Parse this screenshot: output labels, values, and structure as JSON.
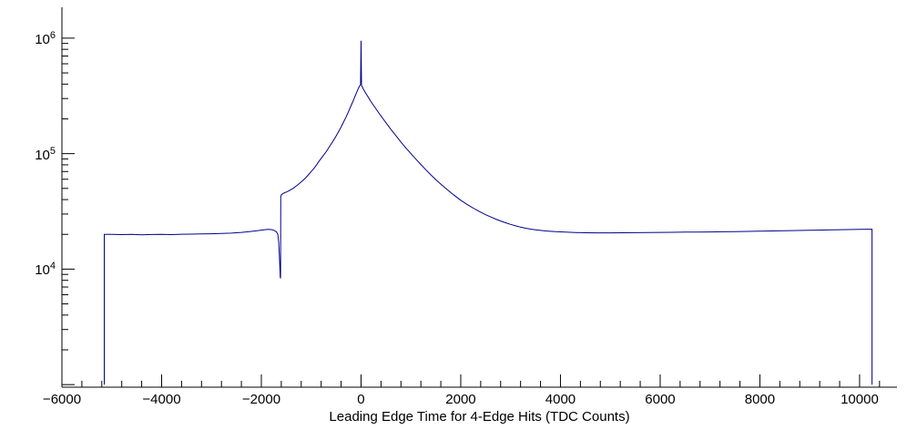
{
  "chart_data": {
    "type": "line",
    "title": "",
    "xlabel": "Leading Edge Time for 4-Edge Hits (TDC Counts)",
    "ylabel": "",
    "y_scale": "log",
    "grid": false,
    "legend": "none",
    "line_color": "#00008b",
    "axis_color": "#000000",
    "xlim": [
      -6000,
      10750
    ],
    "ylim": [
      950,
      1850000
    ],
    "x_ticks": [
      {
        "value": -6000,
        "label": "−6000"
      },
      {
        "value": -4000,
        "label": "−4000"
      },
      {
        "value": -2000,
        "label": "−2000"
      },
      {
        "value": 0,
        "label": "0"
      },
      {
        "value": 2000,
        "label": "2000"
      },
      {
        "value": 4000,
        "label": "4000"
      },
      {
        "value": 6000,
        "label": "6000"
      },
      {
        "value": 8000,
        "label": "8000"
      },
      {
        "value": 10000,
        "label": "10000"
      }
    ],
    "x_minor_step": 400,
    "y_ticks": [
      {
        "value": 1000,
        "base": "",
        "exp": ""
      },
      {
        "value": 10000,
        "base": "10",
        "exp": "4"
      },
      {
        "value": 100000,
        "base": "10",
        "exp": "5"
      },
      {
        "value": 1000000,
        "base": "10",
        "exp": "6"
      }
    ],
    "points": [
      [
        -5150,
        1000
      ],
      [
        -5150,
        20000
      ],
      [
        -5000,
        20000
      ],
      [
        -4800,
        19900
      ],
      [
        -4600,
        20000
      ],
      [
        -4400,
        19850
      ],
      [
        -4200,
        19950
      ],
      [
        -4000,
        20000
      ],
      [
        -3800,
        19900
      ],
      [
        -3600,
        20050
      ],
      [
        -3400,
        20100
      ],
      [
        -3200,
        20150
      ],
      [
        -3000,
        20250
      ],
      [
        -2800,
        20350
      ],
      [
        -2600,
        20500
      ],
      [
        -2400,
        20800
      ],
      [
        -2200,
        21200
      ],
      [
        -2050,
        21600
      ],
      [
        -1950,
        21900
      ],
      [
        -1870,
        22100
      ],
      [
        -1800,
        22000
      ],
      [
        -1750,
        21700
      ],
      [
        -1700,
        21100
      ],
      [
        -1670,
        20000
      ],
      [
        -1650,
        17000
      ],
      [
        -1635,
        12000
      ],
      [
        -1620,
        8400
      ],
      [
        -1615,
        8400
      ],
      [
        -1610,
        42000
      ],
      [
        -1600,
        44000
      ],
      [
        -1550,
        45500
      ],
      [
        -1500,
        46500
      ],
      [
        -1450,
        47500
      ],
      [
        -1400,
        49000
      ],
      [
        -1350,
        50500
      ],
      [
        -1300,
        52500
      ],
      [
        -1250,
        54500
      ],
      [
        -1200,
        57000
      ],
      [
        -1150,
        59500
      ],
      [
        -1100,
        62500
      ],
      [
        -1050,
        66000
      ],
      [
        -1000,
        70000
      ],
      [
        -950,
        74000
      ],
      [
        -900,
        79000
      ],
      [
        -850,
        85000
      ],
      [
        -800,
        91000
      ],
      [
        -750,
        97000
      ],
      [
        -700,
        104000
      ],
      [
        -650,
        112000
      ],
      [
        -600,
        121000
      ],
      [
        -550,
        131000
      ],
      [
        -500,
        142000
      ],
      [
        -450,
        155000
      ],
      [
        -400,
        170000
      ],
      [
        -350,
        188000
      ],
      [
        -300,
        208000
      ],
      [
        -250,
        232000
      ],
      [
        -200,
        260000
      ],
      [
        -150,
        292000
      ],
      [
        -100,
        330000
      ],
      [
        -60,
        362000
      ],
      [
        -30,
        385000
      ],
      [
        -10,
        395000
      ],
      [
        0,
        950000
      ],
      [
        10,
        390000
      ],
      [
        50,
        360000
      ],
      [
        100,
        330000
      ],
      [
        150,
        305000
      ],
      [
        200,
        282000
      ],
      [
        250,
        262000
      ],
      [
        300,
        244000
      ],
      [
        350,
        227000
      ],
      [
        400,
        212000
      ],
      [
        450,
        198000
      ],
      [
        500,
        185000
      ],
      [
        600,
        162000
      ],
      [
        700,
        143000
      ],
      [
        800,
        126000
      ],
      [
        900,
        112000
      ],
      [
        1000,
        100000
      ],
      [
        1100,
        89500
      ],
      [
        1200,
        80500
      ],
      [
        1300,
        72500
      ],
      [
        1400,
        65500
      ],
      [
        1500,
        59500
      ],
      [
        1600,
        54500
      ],
      [
        1700,
        50000
      ],
      [
        1800,
        46000
      ],
      [
        1900,
        42500
      ],
      [
        2000,
        39500
      ],
      [
        2100,
        37000
      ],
      [
        2200,
        34800
      ],
      [
        2300,
        32800
      ],
      [
        2400,
        31100
      ],
      [
        2500,
        29600
      ],
      [
        2600,
        28300
      ],
      [
        2700,
        27100
      ],
      [
        2800,
        26100
      ],
      [
        2900,
        25200
      ],
      [
        3000,
        24400
      ],
      [
        3100,
        23700
      ],
      [
        3200,
        23100
      ],
      [
        3300,
        22600
      ],
      [
        3400,
        22200
      ],
      [
        3500,
        21900
      ],
      [
        3700,
        21400
      ],
      [
        3900,
        21100
      ],
      [
        4100,
        20900
      ],
      [
        4300,
        20750
      ],
      [
        4500,
        20650
      ],
      [
        4750,
        20600
      ],
      [
        5000,
        20600
      ],
      [
        5250,
        20650
      ],
      [
        5500,
        20700
      ],
      [
        5750,
        20750
      ],
      [
        6000,
        20800
      ],
      [
        6250,
        20850
      ],
      [
        6500,
        20900
      ],
      [
        6750,
        20950
      ],
      [
        7000,
        21000
      ],
      [
        7250,
        21050
      ],
      [
        7500,
        21100
      ],
      [
        7750,
        21200
      ],
      [
        8000,
        21300
      ],
      [
        8250,
        21400
      ],
      [
        8500,
        21500
      ],
      [
        8750,
        21600
      ],
      [
        9000,
        21700
      ],
      [
        9250,
        21800
      ],
      [
        9500,
        21900
      ],
      [
        9750,
        22000
      ],
      [
        10000,
        22100
      ],
      [
        10150,
        22150
      ],
      [
        10250,
        22150
      ],
      [
        10250,
        1000
      ]
    ]
  }
}
